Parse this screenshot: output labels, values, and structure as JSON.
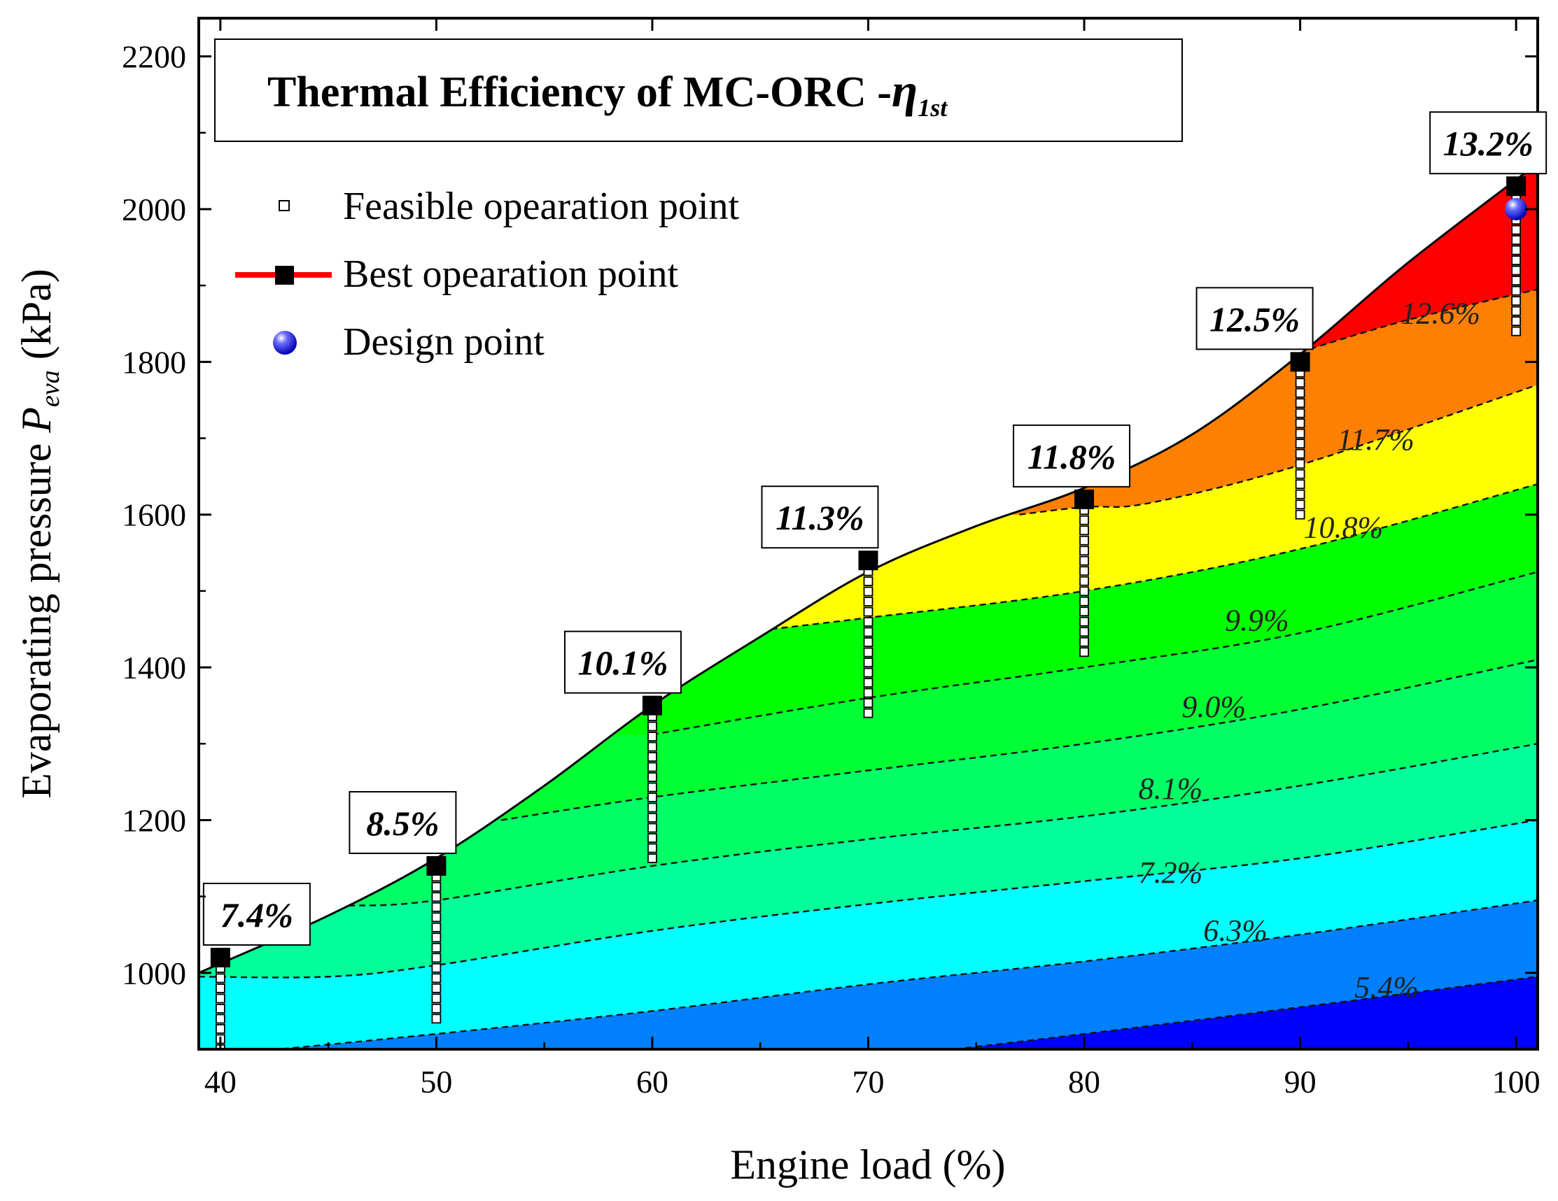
{
  "chart_data": {
    "type": "contour",
    "title": "Thermal Efficiency of MC-ORC -",
    "title_symbol": "η",
    "title_subscript": "1st",
    "xlabel": "Engine load (%)",
    "ylabel_prefix": "Evaporating pressure ",
    "ylabel_symbol": "P",
    "ylabel_subscript": "eva",
    "ylabel_suffix": " (kPa)",
    "xlim": [
      39,
      101
    ],
    "ylim": [
      900,
      2250
    ],
    "x_ticks": [
      40,
      50,
      60,
      70,
      80,
      90,
      100
    ],
    "x_tick_labels": [
      "40",
      "50",
      "60",
      "70",
      "80",
      "90",
      "100"
    ],
    "y_ticks": [
      1000,
      1200,
      1400,
      1600,
      1800,
      2000,
      2200
    ],
    "y_tick_labels": [
      "1000",
      "1200",
      "1400",
      "1600",
      "1800",
      "2000",
      "2200"
    ],
    "boundary": [
      {
        "x": 39,
        "y": 1000
      },
      {
        "x": 45,
        "y": 1075
      },
      {
        "x": 50,
        "y": 1150
      },
      {
        "x": 55,
        "y": 1245
      },
      {
        "x": 60,
        "y": 1350
      },
      {
        "x": 65,
        "y": 1440
      },
      {
        "x": 70,
        "y": 1525
      },
      {
        "x": 75,
        "y": 1585
      },
      {
        "x": 80,
        "y": 1635
      },
      {
        "x": 85,
        "y": 1705
      },
      {
        "x": 90,
        "y": 1810
      },
      {
        "x": 95,
        "y": 1930
      },
      {
        "x": 101,
        "y": 2060
      }
    ],
    "contours": [
      {
        "level": "5.4%",
        "color": "#0000ff",
        "label_pos": {
          "x": 94,
          "y": 968
        },
        "points": [
          {
            "x": 74,
            "y": 900
          },
          {
            "x": 80,
            "y": 920
          },
          {
            "x": 90,
            "y": 955
          },
          {
            "x": 101,
            "y": 995
          }
        ]
      },
      {
        "level": "6.3%",
        "color": "#0080ff",
        "label_pos": {
          "x": 87,
          "y": 1042
        },
        "points": [
          {
            "x": 39,
            "y": 890
          },
          {
            "x": 50,
            "y": 920
          },
          {
            "x": 60,
            "y": 950
          },
          {
            "x": 70,
            "y": 985
          },
          {
            "x": 80,
            "y": 1015
          },
          {
            "x": 90,
            "y": 1050
          },
          {
            "x": 101,
            "y": 1095
          }
        ]
      },
      {
        "level": "7.2%",
        "color": "#00ffff",
        "label_pos": {
          "x": 84,
          "y": 1118
        },
        "points": [
          {
            "x": 39,
            "y": 995
          },
          {
            "x": 45,
            "y": 995
          },
          {
            "x": 50,
            "y": 1010
          },
          {
            "x": 60,
            "y": 1055
          },
          {
            "x": 70,
            "y": 1090
          },
          {
            "x": 80,
            "y": 1120
          },
          {
            "x": 90,
            "y": 1150
          },
          {
            "x": 101,
            "y": 1200
          }
        ]
      },
      {
        "level": "8.1%",
        "color": "#00ff99",
        "label_pos": {
          "x": 84,
          "y": 1228
        },
        "points": [
          {
            "x": 44,
            "y": 1090
          },
          {
            "x": 46,
            "y": 1088
          },
          {
            "x": 50,
            "y": 1095
          },
          {
            "x": 60,
            "y": 1140
          },
          {
            "x": 70,
            "y": 1175
          },
          {
            "x": 80,
            "y": 1205
          },
          {
            "x": 90,
            "y": 1245
          },
          {
            "x": 101,
            "y": 1300
          }
        ]
      },
      {
        "level": "9.0%",
        "color": "#00ff66",
        "label_pos": {
          "x": 86,
          "y": 1335
        },
        "points": [
          {
            "x": 53,
            "y": 1200
          },
          {
            "x": 60,
            "y": 1230
          },
          {
            "x": 70,
            "y": 1265
          },
          {
            "x": 80,
            "y": 1300
          },
          {
            "x": 90,
            "y": 1345
          },
          {
            "x": 101,
            "y": 1410
          }
        ]
      },
      {
        "level": "9.9%",
        "color": "#00ff33",
        "label_pos": {
          "x": 88,
          "y": 1448
        },
        "points": [
          {
            "x": 60,
            "y": 1312
          },
          {
            "x": 70,
            "y": 1360
          },
          {
            "x": 80,
            "y": 1400
          },
          {
            "x": 90,
            "y": 1445
          },
          {
            "x": 101,
            "y": 1525
          }
        ]
      },
      {
        "level": "10.8%",
        "color": "#00ff00",
        "label_pos": {
          "x": 92,
          "y": 1570
        },
        "points": [
          {
            "x": 65.5,
            "y": 1450
          },
          {
            "x": 70,
            "y": 1465
          },
          {
            "x": 80,
            "y": 1500
          },
          {
            "x": 90,
            "y": 1555
          },
          {
            "x": 101,
            "y": 1640
          }
        ]
      },
      {
        "level": "11.7%",
        "color": "#ffff00",
        "label_pos": {
          "x": 93.5,
          "y": 1685
        },
        "points": [
          {
            "x": 77,
            "y": 1600
          },
          {
            "x": 80,
            "y": 1610
          },
          {
            "x": 83,
            "y": 1615
          },
          {
            "x": 90,
            "y": 1665
          },
          {
            "x": 101,
            "y": 1770
          }
        ]
      },
      {
        "level": "12.6%",
        "color": "#ff8000",
        "label_pos": {
          "x": 96.5,
          "y": 1850
        },
        "points": [
          {
            "x": 90,
            "y": 1813
          },
          {
            "x": 95,
            "y": 1855
          },
          {
            "x": 101,
            "y": 1895
          }
        ]
      },
      {
        "level": "",
        "color": "#ff0000",
        "label_pos": null,
        "points": []
      }
    ],
    "feasible_points": [
      {
        "x": 40,
        "ymin": 900,
        "ymax": 1020
      },
      {
        "x": 50,
        "ymin": 940,
        "ymax": 1140
      },
      {
        "x": 60,
        "ymin": 1150,
        "ymax": 1350
      },
      {
        "x": 70,
        "ymin": 1340,
        "ymax": 1540
      },
      {
        "x": 80,
        "ymin": 1420,
        "ymax": 1620
      },
      {
        "x": 90,
        "ymin": 1600,
        "ymax": 1800
      },
      {
        "x": 100,
        "ymin": 1840,
        "ymax": 2030
      }
    ],
    "best_points": [
      {
        "x": 40,
        "y": 1020,
        "label": "7.4%"
      },
      {
        "x": 50,
        "y": 1140,
        "label": "8.5%"
      },
      {
        "x": 60,
        "y": 1350,
        "label": "10.1%"
      },
      {
        "x": 70,
        "y": 1540,
        "label": "11.3%"
      },
      {
        "x": 80,
        "y": 1620,
        "label": "11.8%"
      },
      {
        "x": 90,
        "y": 1800,
        "label": "12.5%"
      },
      {
        "x": 100,
        "y": 2030,
        "label": "13.2%"
      }
    ],
    "design_point": {
      "x": 100,
      "y": 2000
    },
    "legend": [
      {
        "name": "Feasible opearation point",
        "marker": "open-square"
      },
      {
        "name": "Best opearation point",
        "marker": "filled-square-redline"
      },
      {
        "name": "Design point",
        "marker": "blue-sphere"
      }
    ],
    "legend_position": "top-left"
  }
}
